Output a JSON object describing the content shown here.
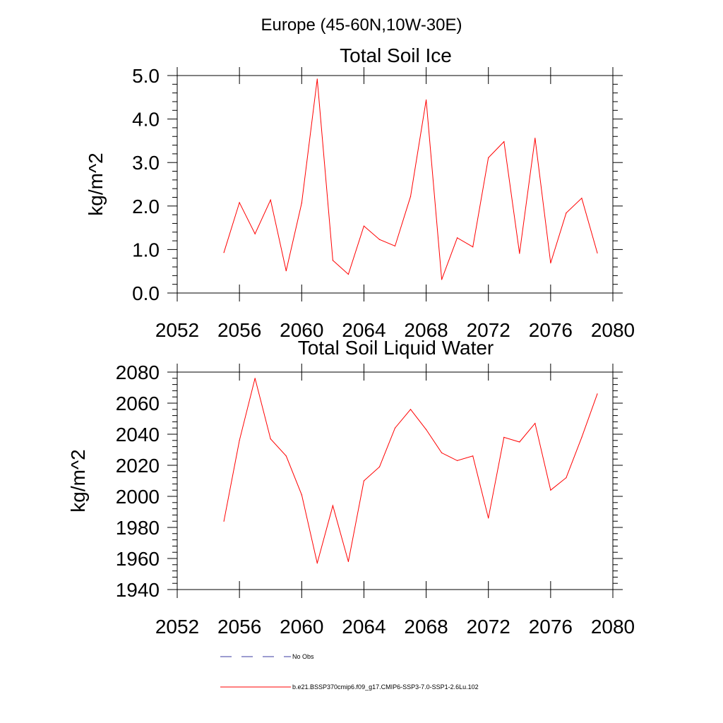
{
  "figure": {
    "suptitle": "Europe (45-60N,10W-30E)",
    "series_color": "#ff0000",
    "obs_color": "#3a3aa0"
  },
  "legend": {
    "entries": [
      {
        "label": "No Obs",
        "style": "dashed",
        "color": "#3a3aa0"
      },
      {
        "label": "b.e21.BSSP370cmip6.f09_g17.CMIP6-SSP3-7.0-SSP1-2.6Lu.102",
        "style": "solid",
        "color": "#ff0000"
      }
    ]
  },
  "chart_data": [
    {
      "type": "line",
      "title": "Total Soil Ice",
      "xlabel": "",
      "ylabel": "kg/m^2",
      "xlim": [
        2052,
        2080
      ],
      "ylim": [
        0.0,
        5.0
      ],
      "x_ticks": [
        2052,
        2056,
        2060,
        2064,
        2068,
        2072,
        2076,
        2080
      ],
      "x_tick_labels": [
        "2052",
        "2056",
        "2060",
        "2064",
        "2068",
        "2072",
        "2076",
        "2080"
      ],
      "y_ticks": [
        0,
        1,
        2,
        3,
        4,
        5
      ],
      "y_tick_labels": [
        "0.0",
        "1.0",
        "2.0",
        "3.0",
        "4.0",
        "5.0"
      ],
      "grid": false,
      "series": [
        {
          "color": "#ff0000",
          "x": [
            2055,
            2056,
            2057,
            2058,
            2059,
            2060,
            2061,
            2062,
            2063,
            2064,
            2065,
            2066,
            2067,
            2068,
            2069,
            2070,
            2071,
            2072,
            2073,
            2074,
            2075,
            2076,
            2077,
            2078,
            2079
          ],
          "values": [
            0.93,
            2.08,
            1.36,
            2.14,
            0.51,
            2.07,
            4.92,
            0.75,
            0.43,
            1.54,
            1.23,
            1.08,
            2.22,
            4.44,
            0.31,
            1.27,
            1.06,
            3.11,
            3.48,
            0.91,
            3.56,
            0.69,
            1.84,
            2.18,
            0.92
          ]
        }
      ]
    },
    {
      "type": "line",
      "title": "Total Soil Liquid Water",
      "xlabel": "",
      "ylabel": "kg/m^2",
      "xlim": [
        2052,
        2080
      ],
      "ylim": [
        1940,
        2080
      ],
      "x_ticks": [
        2052,
        2056,
        2060,
        2064,
        2068,
        2072,
        2076,
        2080
      ],
      "x_tick_labels": [
        "2052",
        "2056",
        "2060",
        "2064",
        "2068",
        "2072",
        "2076",
        "2080"
      ],
      "y_ticks": [
        1940,
        1960,
        1980,
        2000,
        2020,
        2040,
        2060,
        2080
      ],
      "y_tick_labels": [
        "1940",
        "1960",
        "1980",
        "2000",
        "2020",
        "2040",
        "2060",
        "2080"
      ],
      "grid": false,
      "series": [
        {
          "color": "#ff0000",
          "x": [
            2055,
            2056,
            2057,
            2058,
            2059,
            2060,
            2061,
            2062,
            2063,
            2064,
            2065,
            2066,
            2067,
            2068,
            2069,
            2070,
            2071,
            2072,
            2073,
            2074,
            2075,
            2076,
            2077,
            2078,
            2079
          ],
          "values": [
            1984,
            2036,
            2076,
            2037,
            2026,
            2001,
            1957,
            1994,
            1958,
            2010,
            2019,
            2044,
            2056,
            2043,
            2028,
            2023,
            2026,
            1986,
            2038,
            2035,
            2047,
            2004,
            2012,
            2038,
            2066
          ]
        }
      ]
    }
  ]
}
